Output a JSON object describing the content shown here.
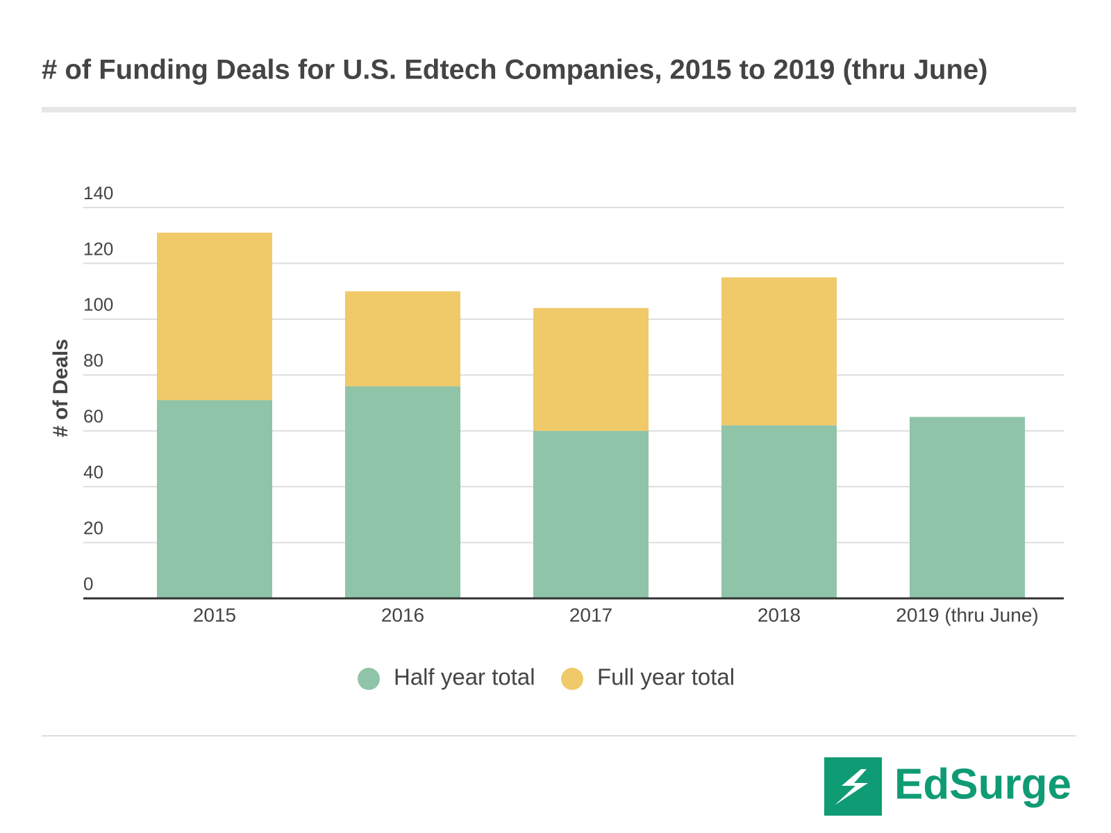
{
  "chart_data": {
    "type": "stacked_bar",
    "title": "# of Funding Deals for U.S. Edtech Companies, 2015 to 2019 (thru June)",
    "y_label": "# of Deals",
    "categories": [
      "2015",
      "2016",
      "2017",
      "2018",
      "2019 (thru June)"
    ],
    "series": [
      {
        "name": "Half year total",
        "color": "#8fc4a8",
        "values": [
          71,
          76,
          60,
          62,
          65
        ]
      },
      {
        "name": "Full year total",
        "color": "#f0ca69",
        "values": [
          60,
          34,
          44,
          53,
          null
        ]
      }
    ],
    "ylim": [
      0,
      140
    ],
    "yticks": [
      0,
      20,
      40,
      60,
      80,
      100,
      120,
      140
    ],
    "grid": true,
    "legend": "bottom"
  },
  "logo": "EdSurge"
}
